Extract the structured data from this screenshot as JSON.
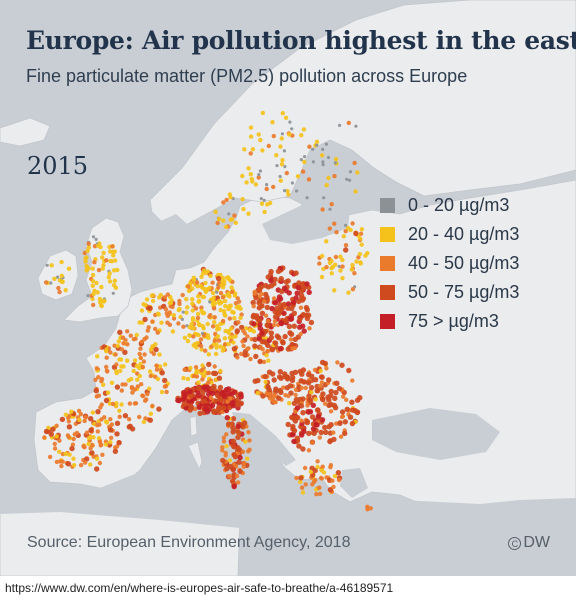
{
  "title": "Europe: Air pollution highest in the east",
  "subtitle": "Fine particulate matter (PM2.5) pollution across Europe",
  "year": "2015",
  "legend": [
    {
      "label": "0 - 20 µg/m3",
      "color": "#8c9196"
    },
    {
      "label": "20 - 40 µg/m3",
      "color": "#f4c21b"
    },
    {
      "label": "40 - 50 µg/m3",
      "color": "#ea7a2c"
    },
    {
      "label": "50 - 75 µg/m3",
      "color": "#cf4a1e"
    },
    {
      "label": "75 > µg/m3",
      "color": "#c41f26"
    }
  ],
  "colors": {
    "land": "#eaecee",
    "sea": "#c9ced4",
    "border": "#c3c7cc"
  },
  "source": "Source: European Environment Agency, 2018",
  "credit": {
    "symbol": "C",
    "text": "DW"
  },
  "url": "https://www.dw.com/en/where-is-europes-air-safe-to-breathe/a-46189571"
}
